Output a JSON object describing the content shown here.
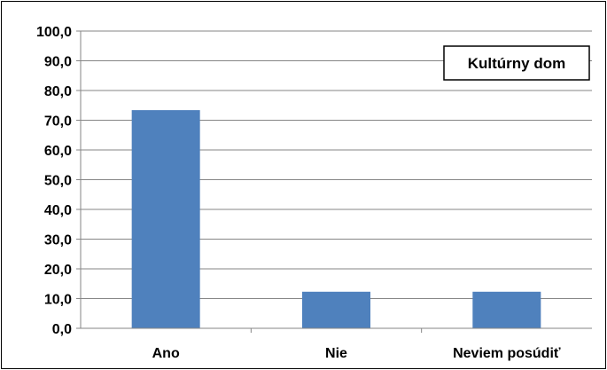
{
  "chart_data": {
    "type": "bar",
    "title": "",
    "xlabel": "",
    "ylabel": "",
    "categories": [
      "Ano",
      "Nie",
      "Neviem posúdiť"
    ],
    "series": [
      {
        "name": "Kultúrny dom",
        "values": [
          73.4,
          12.3,
          12.3
        ]
      }
    ],
    "ylim": [
      0,
      100
    ],
    "yticks": [
      "0,0",
      "10,0",
      "20,0",
      "30,0",
      "40,0",
      "50,0",
      "60,0",
      "70,0",
      "80,0",
      "90,0",
      "100,0"
    ],
    "grid": true,
    "legend": {
      "placement": "top-right",
      "label": "Kultúrny dom"
    },
    "colors": {
      "bar": "#4F81BD",
      "grid": "#868686",
      "axis": "#868686"
    }
  }
}
